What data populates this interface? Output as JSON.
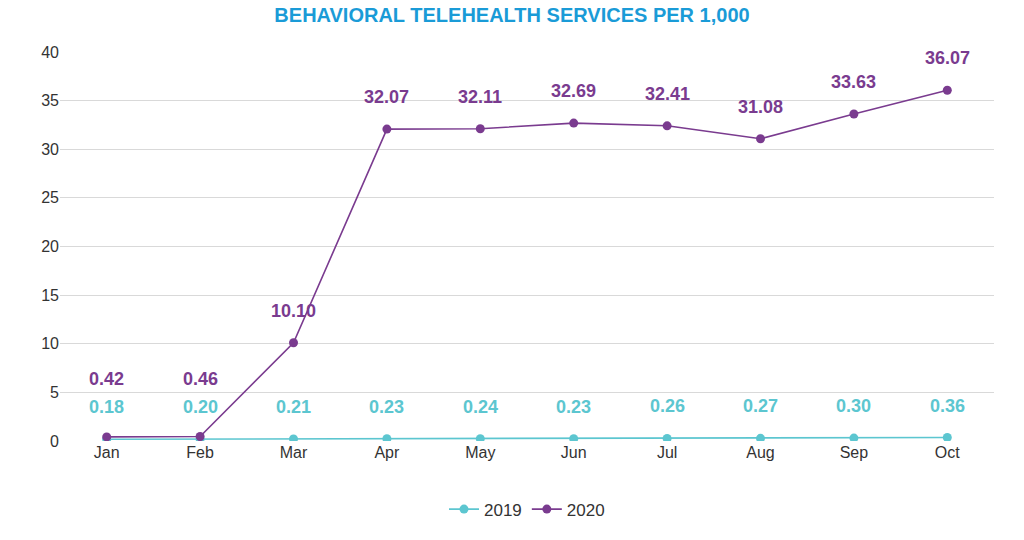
{
  "chart_data": {
    "type": "line",
    "title": "BEHAVIORAL TELEHEALTH SERVICES PER 1,000",
    "categories": [
      "Jan",
      "Feb",
      "Mar",
      "Apr",
      "May",
      "Jun",
      "Jul",
      "Aug",
      "Sep",
      "Oct"
    ],
    "series": [
      {
        "name": "2019",
        "color": "#5cc6d0",
        "values": [
          0.18,
          0.2,
          0.21,
          0.23,
          0.24,
          0.23,
          0.26,
          0.27,
          0.3,
          0.36
        ],
        "value_labels": [
          "0.18",
          "0.20",
          "0.21",
          "0.23",
          "0.24",
          "0.23",
          "0.26",
          "0.27",
          "0.30",
          "0.36"
        ]
      },
      {
        "name": "2020",
        "color": "#7a3b8f",
        "values": [
          0.42,
          0.46,
          10.1,
          32.07,
          32.11,
          32.69,
          32.41,
          31.08,
          33.63,
          36.07
        ],
        "value_labels": [
          "0.42",
          "0.46",
          "10.10",
          "32.07",
          "32.11",
          "32.69",
          "32.41",
          "31.08",
          "33.63",
          "36.07"
        ]
      }
    ],
    "ylim": [
      0,
      40
    ],
    "yticks": [
      0,
      5,
      10,
      15,
      20,
      25,
      30,
      35,
      40
    ],
    "grid": true,
    "data_labels": true,
    "legend": "bottom",
    "marker": "circle"
  }
}
